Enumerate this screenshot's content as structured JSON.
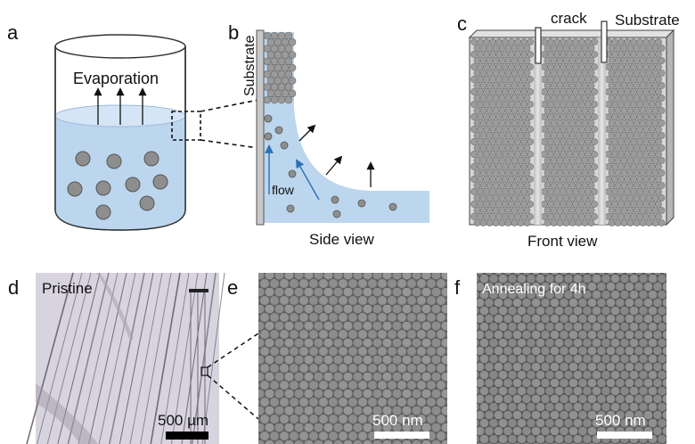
{
  "panels": {
    "a": {
      "letter": "a",
      "evaporation_label": "Evaporation"
    },
    "b": {
      "letter": "b",
      "substrate_label": "Substrate",
      "flow_label": "flow",
      "caption": "Side view"
    },
    "c": {
      "letter": "c",
      "crack_label": "crack",
      "substrate_label": "Substrate",
      "caption": "Front view"
    },
    "d": {
      "letter": "d",
      "title": "Pristine",
      "scale_label": "500 µm"
    },
    "e": {
      "letter": "e",
      "scale_label": "500 nm"
    },
    "f": {
      "letter": "f",
      "title": "Annealing for 4h",
      "scale_label": "500 nm"
    }
  },
  "colors": {
    "liquid": "#bcd6ee",
    "particle": "#8e8e8e",
    "substrate": "#c8c8c8",
    "flow_arrow": "#2f6fb5",
    "sem_bg": "#6b6b6b"
  }
}
